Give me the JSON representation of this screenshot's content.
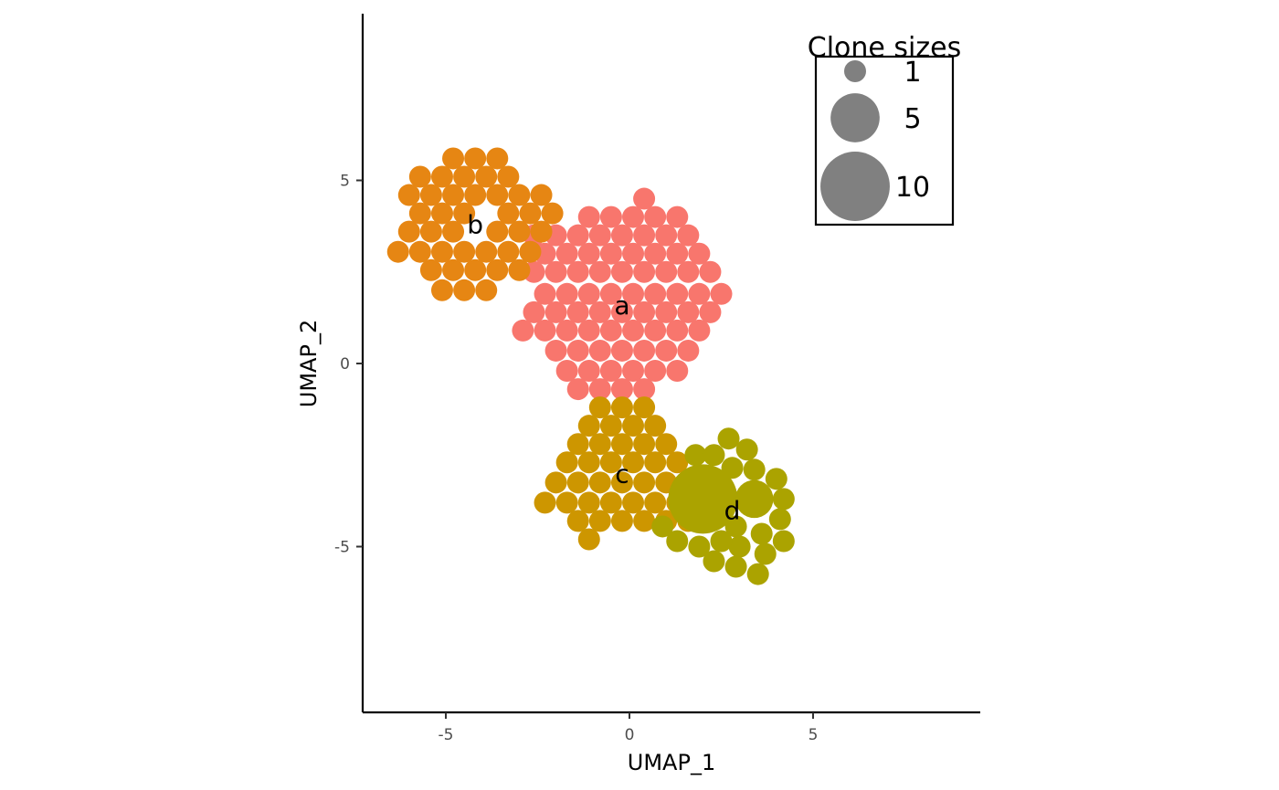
{
  "chart_data": {
    "type": "scatter",
    "subtype": "packed clone-size bubbles",
    "xlabel": "UMAP_1",
    "ylabel": "UMAP_2",
    "xlim": [
      -7.3,
      9.6
    ],
    "ylim": [
      -9.5,
      9.5
    ],
    "xticks": [
      -5,
      0,
      5
    ],
    "yticks": [
      -5,
      0,
      5
    ],
    "xtick_labels": [
      "-5",
      "0",
      "5"
    ],
    "ytick_labels": [
      "-5",
      "0",
      "5"
    ],
    "grid": false,
    "legend": {
      "title": "Clone sizes",
      "placement": "top-right",
      "entries": [
        {
          "label": "1",
          "size": 1
        },
        {
          "label": "5",
          "size": 5
        },
        {
          "label": "10",
          "size": 10
        }
      ]
    },
    "clusters": [
      {
        "label": "a",
        "color": "#F8766D",
        "label_pos": [
          -0.2,
          1.6
        ],
        "unit_clones": [
          [
            0.4,
            4.5
          ],
          [
            -1.1,
            4.0
          ],
          [
            -0.5,
            4.0
          ],
          [
            0.1,
            4.0
          ],
          [
            0.7,
            4.0
          ],
          [
            1.3,
            4.0
          ],
          [
            -2.6,
            3.5
          ],
          [
            -2.0,
            3.5
          ],
          [
            -1.4,
            3.5
          ],
          [
            -0.8,
            3.5
          ],
          [
            -0.2,
            3.5
          ],
          [
            0.4,
            3.5
          ],
          [
            1.0,
            3.5
          ],
          [
            1.6,
            3.5
          ],
          [
            -2.3,
            3.0
          ],
          [
            -1.7,
            3.0
          ],
          [
            -1.1,
            3.0
          ],
          [
            -0.5,
            3.0
          ],
          [
            0.1,
            3.0
          ],
          [
            0.7,
            3.0
          ],
          [
            1.3,
            3.0
          ],
          [
            1.9,
            3.0
          ],
          [
            -2.6,
            2.5
          ],
          [
            -2.0,
            2.5
          ],
          [
            -1.4,
            2.5
          ],
          [
            -0.8,
            2.5
          ],
          [
            -0.2,
            2.5
          ],
          [
            0.4,
            2.5
          ],
          [
            1.0,
            2.5
          ],
          [
            1.6,
            2.5
          ],
          [
            2.2,
            2.5
          ],
          [
            -2.3,
            1.9
          ],
          [
            -1.7,
            1.9
          ],
          [
            -1.1,
            1.9
          ],
          [
            -0.5,
            1.9
          ],
          [
            0.1,
            1.9
          ],
          [
            0.7,
            1.9
          ],
          [
            1.3,
            1.9
          ],
          [
            1.9,
            1.9
          ],
          [
            2.5,
            1.9
          ],
          [
            -2.6,
            1.4
          ],
          [
            -2.0,
            1.4
          ],
          [
            -1.4,
            1.4
          ],
          [
            -0.8,
            1.4
          ],
          [
            -0.2,
            1.4
          ],
          [
            0.4,
            1.4
          ],
          [
            1.0,
            1.4
          ],
          [
            1.6,
            1.4
          ],
          [
            2.2,
            1.4
          ],
          [
            -2.9,
            0.9
          ],
          [
            -2.3,
            0.9
          ],
          [
            -1.7,
            0.9
          ],
          [
            -1.1,
            0.9
          ],
          [
            -0.5,
            0.9
          ],
          [
            0.1,
            0.9
          ],
          [
            0.7,
            0.9
          ],
          [
            1.3,
            0.9
          ],
          [
            1.9,
            0.9
          ],
          [
            -2.0,
            0.35
          ],
          [
            -1.4,
            0.35
          ],
          [
            -0.8,
            0.35
          ],
          [
            -0.2,
            0.35
          ],
          [
            0.4,
            0.35
          ],
          [
            1.0,
            0.35
          ],
          [
            1.6,
            0.35
          ],
          [
            -1.7,
            -0.2
          ],
          [
            -1.1,
            -0.2
          ],
          [
            -0.5,
            -0.2
          ],
          [
            0.1,
            -0.2
          ],
          [
            0.7,
            -0.2
          ],
          [
            1.3,
            -0.2
          ],
          [
            -1.4,
            -0.7
          ],
          [
            -0.8,
            -0.7
          ],
          [
            -0.2,
            -0.7
          ],
          [
            0.4,
            -0.7
          ]
        ]
      },
      {
        "label": "b",
        "color": "#E68613",
        "label_pos": [
          -4.2,
          3.8
        ],
        "unit_clones": [
          [
            -4.8,
            5.6
          ],
          [
            -4.2,
            5.6
          ],
          [
            -3.6,
            5.6
          ],
          [
            -5.7,
            5.1
          ],
          [
            -5.1,
            5.1
          ],
          [
            -4.5,
            5.1
          ],
          [
            -3.9,
            5.1
          ],
          [
            -3.3,
            5.1
          ],
          [
            -6.0,
            4.6
          ],
          [
            -5.4,
            4.6
          ],
          [
            -4.8,
            4.6
          ],
          [
            -4.2,
            4.6
          ],
          [
            -3.6,
            4.6
          ],
          [
            -3.0,
            4.6
          ],
          [
            -2.4,
            4.6
          ],
          [
            -5.7,
            4.1
          ],
          [
            -5.1,
            4.1
          ],
          [
            -4.5,
            4.1
          ],
          [
            -3.3,
            4.1
          ],
          [
            -2.7,
            4.1
          ],
          [
            -2.1,
            4.1
          ],
          [
            -6.0,
            3.6
          ],
          [
            -5.4,
            3.6
          ],
          [
            -4.8,
            3.6
          ],
          [
            -3.6,
            3.6
          ],
          [
            -3.0,
            3.6
          ],
          [
            -2.4,
            3.6
          ],
          [
            -6.3,
            3.05
          ],
          [
            -5.7,
            3.05
          ],
          [
            -5.1,
            3.05
          ],
          [
            -4.5,
            3.05
          ],
          [
            -3.9,
            3.05
          ],
          [
            -3.3,
            3.05
          ],
          [
            -2.7,
            3.05
          ],
          [
            -5.4,
            2.55
          ],
          [
            -4.8,
            2.55
          ],
          [
            -4.2,
            2.55
          ],
          [
            -3.6,
            2.55
          ],
          [
            -3.0,
            2.55
          ],
          [
            -5.1,
            2.0
          ],
          [
            -4.5,
            2.0
          ],
          [
            -3.9,
            2.0
          ]
        ]
      },
      {
        "label": "c",
        "color": "#CD9600",
        "label_pos": [
          -0.2,
          -3.0
        ],
        "unit_clones": [
          [
            -0.8,
            -1.2
          ],
          [
            -0.2,
            -1.2
          ],
          [
            0.4,
            -1.2
          ],
          [
            -1.1,
            -1.7
          ],
          [
            -0.5,
            -1.7
          ],
          [
            0.1,
            -1.7
          ],
          [
            0.7,
            -1.7
          ],
          [
            -1.4,
            -2.2
          ],
          [
            -0.8,
            -2.2
          ],
          [
            -0.2,
            -2.2
          ],
          [
            0.4,
            -2.2
          ],
          [
            1.0,
            -2.2
          ],
          [
            -1.7,
            -2.7
          ],
          [
            -1.1,
            -2.7
          ],
          [
            -0.5,
            -2.7
          ],
          [
            0.1,
            -2.7
          ],
          [
            0.7,
            -2.7
          ],
          [
            1.3,
            -2.7
          ],
          [
            -2.0,
            -3.25
          ],
          [
            -1.4,
            -3.25
          ],
          [
            -0.8,
            -3.25
          ],
          [
            -0.2,
            -3.25
          ],
          [
            0.4,
            -3.25
          ],
          [
            1.0,
            -3.25
          ],
          [
            1.6,
            -3.25
          ],
          [
            -2.3,
            -3.8
          ],
          [
            -1.7,
            -3.8
          ],
          [
            -1.1,
            -3.8
          ],
          [
            -0.5,
            -3.8
          ],
          [
            0.1,
            -3.8
          ],
          [
            0.7,
            -3.8
          ],
          [
            1.3,
            -3.8
          ],
          [
            -1.4,
            -4.3
          ],
          [
            -0.8,
            -4.3
          ],
          [
            -0.2,
            -4.3
          ],
          [
            0.4,
            -4.3
          ],
          [
            1.0,
            -4.3
          ],
          [
            1.6,
            -4.3
          ],
          [
            -1.1,
            -4.8
          ]
        ]
      },
      {
        "label": "d",
        "color": "#ABA300",
        "label_pos": [
          2.8,
          -4.0
        ],
        "large_clones": [
          {
            "x": 2.0,
            "y": -3.7,
            "size": 10
          },
          {
            "x": 3.4,
            "y": -3.7,
            "size": 3
          }
        ],
        "unit_clones": [
          [
            2.7,
            -2.05
          ],
          [
            3.2,
            -2.35
          ],
          [
            1.8,
            -2.5
          ],
          [
            2.3,
            -2.5
          ],
          [
            2.8,
            -2.85
          ],
          [
            3.4,
            -2.9
          ],
          [
            4.0,
            -3.15
          ],
          [
            4.2,
            -3.7
          ],
          [
            4.1,
            -4.25
          ],
          [
            3.6,
            -4.65
          ],
          [
            2.9,
            -4.45
          ],
          [
            4.2,
            -4.85
          ],
          [
            3.0,
            -5.0
          ],
          [
            3.7,
            -5.2
          ],
          [
            1.9,
            -5.0
          ],
          [
            2.5,
            -4.85
          ],
          [
            2.3,
            -5.4
          ],
          [
            2.9,
            -5.55
          ],
          [
            3.5,
            -5.75
          ],
          [
            1.3,
            -4.85
          ],
          [
            0.9,
            -4.45
          ]
        ]
      }
    ]
  }
}
